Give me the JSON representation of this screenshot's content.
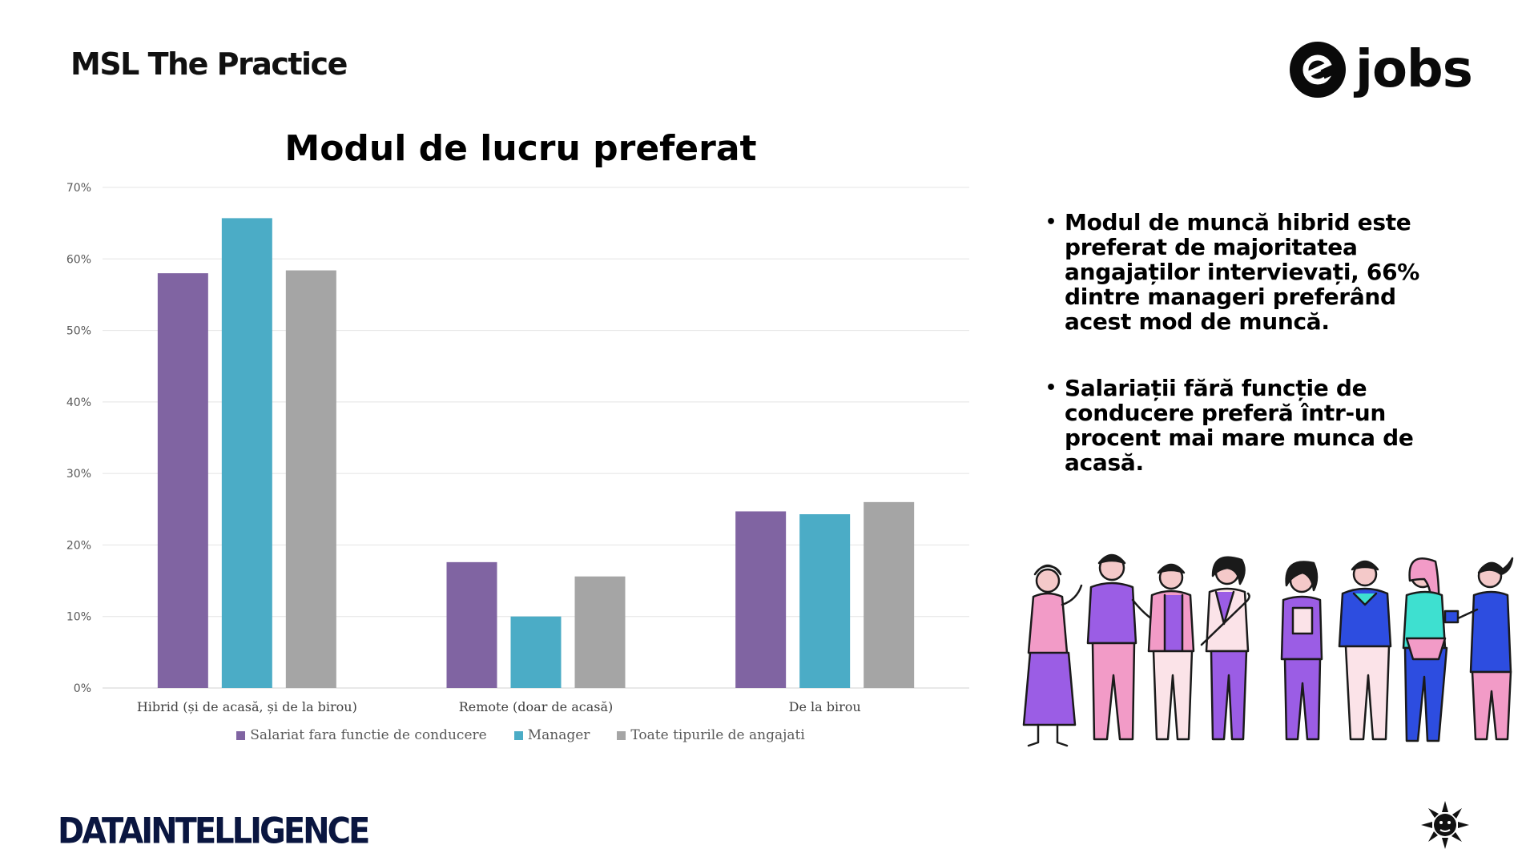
{
  "header": {
    "brand_left": "MSL The Practice",
    "brand_right": "jobs",
    "brand_right_mark": "e"
  },
  "footer": {
    "brand_left": "DATAINTELLIGENCE"
  },
  "bullets": [
    "Modul de muncă hibrid este preferat de majoritatea angajaților intervievați, 66% dintre manageri preferând acest mod de muncă.",
    "Salariații fără funcție de conducere preferă într-un procent mai mare munca de acasă."
  ],
  "chart_data": {
    "type": "bar",
    "title": "Modul de lucru preferat",
    "categories": [
      "Hibrid (și de acasă, și de la birou)",
      "Remote (doar de acasă)",
      "De la birou"
    ],
    "series": [
      {
        "name": "Salariat fara functie de conducere",
        "color": "#8064a2",
        "values": [
          58,
          17.6,
          24.7
        ]
      },
      {
        "name": "Manager",
        "color": "#4bacc6",
        "values": [
          65.7,
          10,
          24.3
        ]
      },
      {
        "name": "Toate tipurile de angajati",
        "color": "#a5a5a5",
        "values": [
          58.4,
          15.6,
          26
        ]
      }
    ],
    "ylim": [
      0,
      70
    ],
    "yticks": [
      "0%",
      "10%",
      "20%",
      "30%",
      "40%",
      "50%",
      "60%",
      "70%"
    ],
    "grid": true,
    "legend": "bottom"
  }
}
